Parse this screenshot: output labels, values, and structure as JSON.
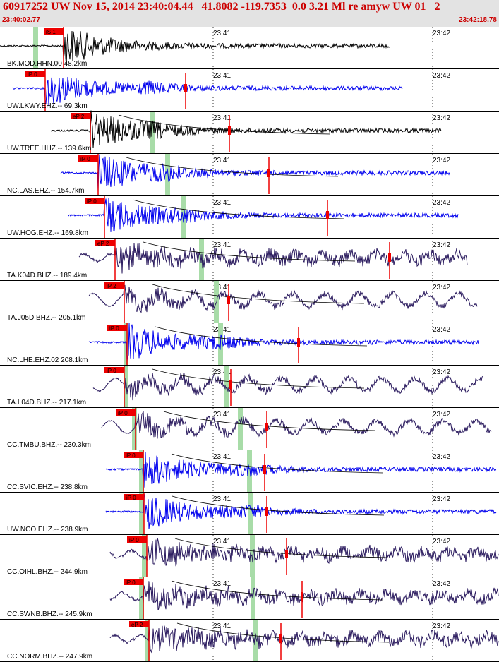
{
  "header": {
    "title": "60917252 UW Nov 15, 2014 23:40:04.44   41.8082 -119.7353  0.0 3.21 Ml re amyw UW 01   2",
    "start_time": "23:40:02.77",
    "end_time": "23:42:18.78"
  },
  "tick_labels": [
    "23:41",
    "23:42"
  ],
  "colors": {
    "black_trace": "#000000",
    "blue_trace": "#0000ee",
    "purple_trace": "#2a1a5e",
    "pick_flag": "#ee0000",
    "window_marker": "#a8dca8",
    "header_text": "#cc0000"
  },
  "traces": [
    {
      "label": "BK.MOD.HHN.00 48.2km",
      "pick": "iS 1",
      "color": "black",
      "style": "event"
    },
    {
      "label": "UW.LKWY.EHZ.-- 69.3km",
      "pick": "iP 0",
      "color": "blue",
      "style": "event"
    },
    {
      "label": "UW.TREE.HHZ.-- 139.6km",
      "pick": "eP 2",
      "color": "black",
      "style": "event"
    },
    {
      "label": "NC.LAS.EHZ.-- 154.7km",
      "pick": "iP 0",
      "color": "blue",
      "style": "event"
    },
    {
      "label": "UW.HOG.EHZ.-- 169.8km",
      "pick": "iP 0",
      "color": "blue",
      "style": "event"
    },
    {
      "label": "TA.K04D.BHZ.-- 189.4km",
      "pick": "eP 2",
      "color": "purple",
      "style": "noisy"
    },
    {
      "label": "TA.J05D.BHZ.-- 205.1km",
      "pick": "iP 2",
      "color": "purple",
      "style": "wavy"
    },
    {
      "label": "NC.LHE.EHZ.02 208.1km",
      "pick": "iP 0",
      "color": "blue",
      "style": "event"
    },
    {
      "label": "TA.L04D.BHZ.-- 217.1km",
      "pick": "iP 0",
      "color": "purple",
      "style": "wavy"
    },
    {
      "label": "CC.TMBU.BHZ.-- 230.3km",
      "pick": "iP 0",
      "color": "purple",
      "style": "wavy"
    },
    {
      "label": "CC.SVIC.EHZ.-- 238.8km",
      "pick": "iP 0",
      "color": "blue",
      "style": "event"
    },
    {
      "label": "UW.NCO.EHZ.-- 238.9km",
      "pick": "iP 0",
      "color": "blue",
      "style": "event"
    },
    {
      "label": "CC.OIHL.BHZ.-- 244.9km",
      "pick": "iP 0",
      "color": "purple",
      "style": "noisy"
    },
    {
      "label": "CC.SWNB.BHZ.-- 245.9km",
      "pick": "iP 0",
      "color": "purple",
      "style": "noisy"
    },
    {
      "label": "CC.NORM.BHZ.-- 247.9km",
      "pick": "eP 2",
      "color": "purple",
      "style": "noisy"
    }
  ]
}
